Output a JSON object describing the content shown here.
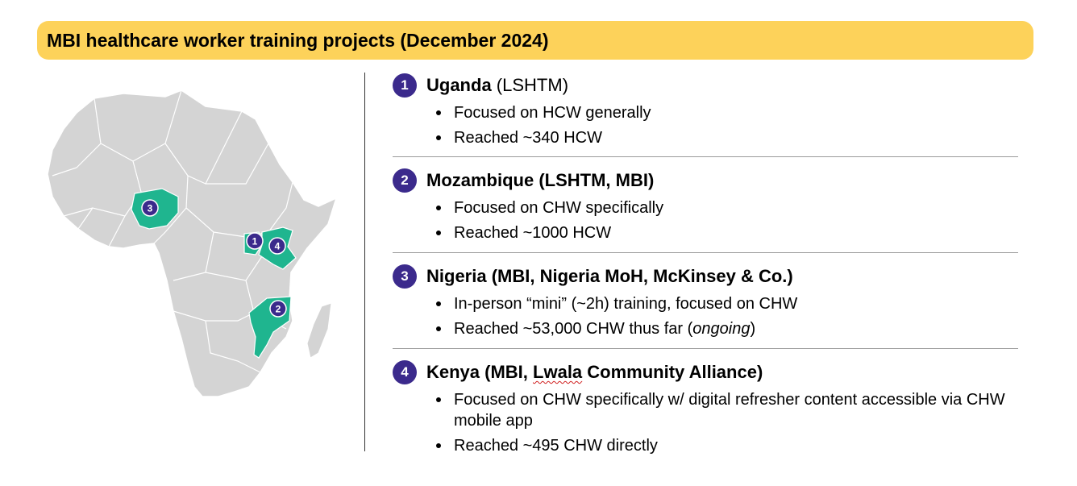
{
  "title": "MBI healthcare worker training projects (December 2024)",
  "colors": {
    "title_bg": "#fdd25a",
    "badge": "#3b2a8c",
    "highlight": "#1fb58f",
    "land": "#d4d4d4"
  },
  "map": {
    "markers": [
      "1",
      "2",
      "3",
      "4"
    ]
  },
  "projects": [
    {
      "number": "1",
      "name": "Uganda",
      "partners": " (LSHTM)",
      "bullets": [
        "Focused on HCW generally",
        "Reached ~340 HCW"
      ]
    },
    {
      "number": "2",
      "name": "Mozambique (LSHTM, MBI)",
      "bullets": [
        "Focused on CHW specifically",
        "Reached ~1000 HCW"
      ]
    },
    {
      "number": "3",
      "name": "Nigeria (MBI, Nigeria MoH, McKinsey & Co.)",
      "bullets": [
        "In-person “mini” (~2h) training, focused on CHW",
        "Reached ~53,000 CHW thus far (",
        "ongoing",
        ")"
      ]
    },
    {
      "number": "4",
      "name_prefix": "Kenya (MBI, ",
      "name_flagged": "Lwala",
      "name_suffix": " Community Alliance)",
      "bullets": [
        "Focused on CHW specifically w/ digital refresher content accessible via CHW mobile app",
        "Reached ~495 CHW directly"
      ]
    }
  ]
}
